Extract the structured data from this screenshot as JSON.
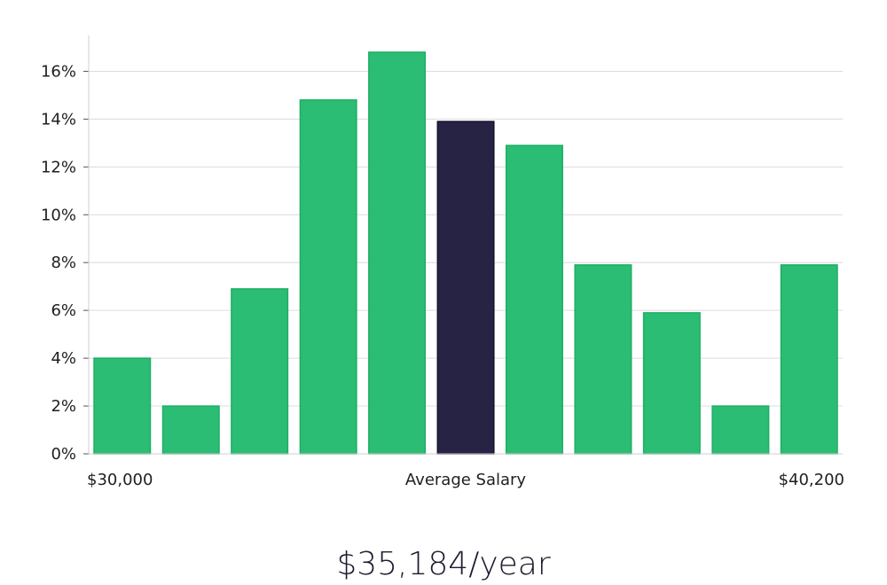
{
  "chart_data": {
    "type": "bar",
    "title": "",
    "xlabel": "Average Salary",
    "ylabel": "",
    "ylim": [
      0,
      17.5
    ],
    "y_ticks": [
      "0%",
      "2%",
      "4%",
      "6%",
      "8%",
      "10%",
      "12%",
      "14%",
      "16%"
    ],
    "y_tick_values": [
      0,
      2,
      4,
      6,
      8,
      10,
      12,
      14,
      16
    ],
    "x_range_labels": {
      "min": "$30,000",
      "max": "$40,200"
    },
    "values": [
      4.0,
      2.0,
      6.9,
      14.8,
      16.8,
      13.9,
      12.9,
      7.9,
      5.9,
      2.0,
      7.9
    ],
    "highlight_index": 5,
    "grid": true
  },
  "colors": {
    "bar": "#2bbd74",
    "bar_edge": "#1fae66",
    "highlight": "#272345",
    "grid": "#dcdcdc",
    "axis": "#cfcfcf"
  },
  "summary": {
    "average_salary": "$35,184/year"
  }
}
